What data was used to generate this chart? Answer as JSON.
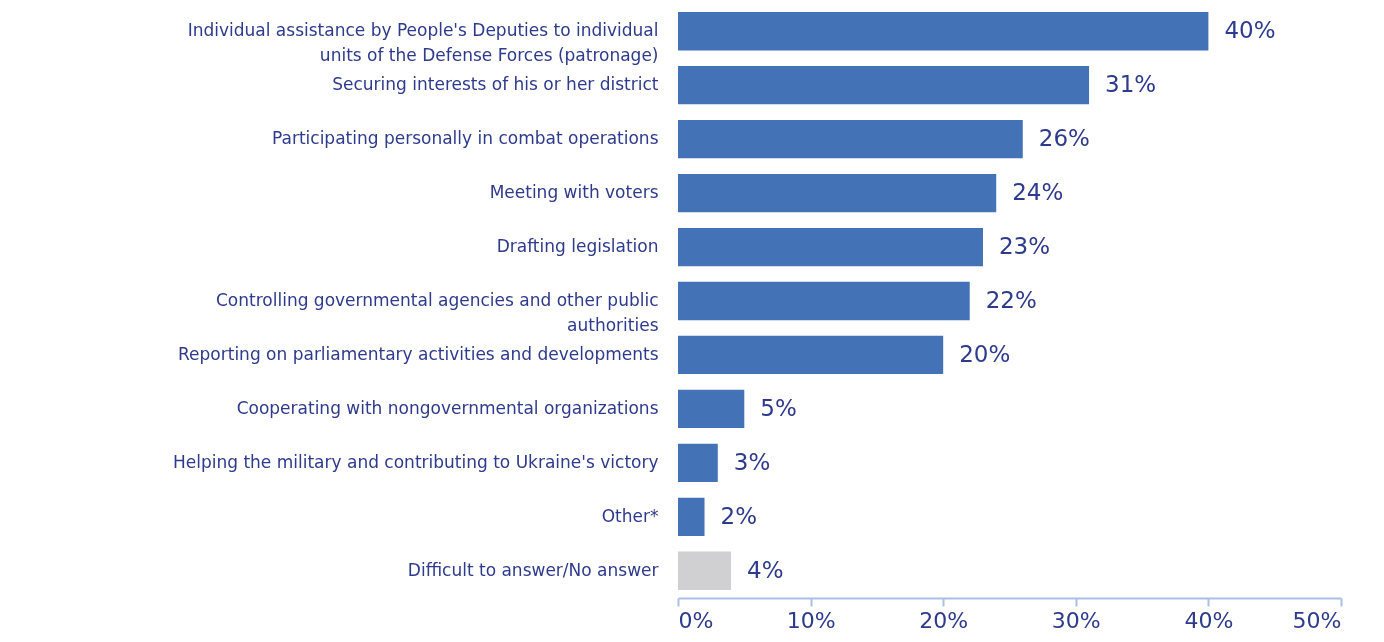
{
  "chart_data": {
    "type": "bar",
    "orientation": "horizontal",
    "categories": [
      "Individual assistance by People's Deputies to individual units of the Defense Forces (patronage)",
      "Securing interests of his or her district",
      "Participating personally in combat operations",
      "Meeting with voters",
      "Drafting legislation",
      "Controlling governmental agencies and other public authorities",
      "Reporting on parliamentary activities and developments",
      "Cooperating with nongovernmental organizations",
      "Helping the military and contributing to Ukraine's victory",
      "Other*",
      "Difficult to answer/No answer"
    ],
    "values": [
      40,
      31,
      26,
      24,
      23,
      22,
      20,
      5,
      3,
      2,
      4
    ],
    "value_labels": [
      "40%",
      "31%",
      "26%",
      "24%",
      "23%",
      "22%",
      "20%",
      "5%",
      "3%",
      "2%",
      "4%"
    ],
    "colors": [
      "#4472b7",
      "#4472b7",
      "#4472b7",
      "#4472b7",
      "#4472b7",
      "#4472b7",
      "#4472b7",
      "#4472b7",
      "#4472b7",
      "#4472b7",
      "#d0d0d2"
    ],
    "xlim": [
      0,
      50
    ],
    "xticks": [
      {
        "value": 0,
        "label": "0%"
      },
      {
        "value": 10,
        "label": "10%"
      },
      {
        "value": 20,
        "label": "20%"
      },
      {
        "value": 30,
        "label": "30%"
      },
      {
        "value": 40,
        "label": "40%"
      },
      {
        "value": 50,
        "label": "50%"
      }
    ],
    "grid": false
  }
}
